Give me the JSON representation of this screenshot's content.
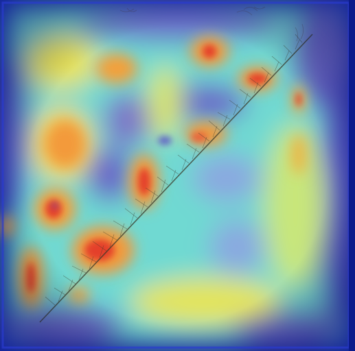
{
  "image": {
    "description_tag": "saliency-heatmap-over-specimen-photo",
    "palette": {
      "frame_dark": "#0b1a8a",
      "edge_blue": "#3a3fd0",
      "cool_purple": "#6b68c8",
      "cyan": "#55d6d6",
      "aqua": "#7fe3c8",
      "yellow": "#f5e34a",
      "orange": "#f39a3a",
      "red": "#e4402a",
      "specimen_line": "#3a3a2a"
    }
  }
}
